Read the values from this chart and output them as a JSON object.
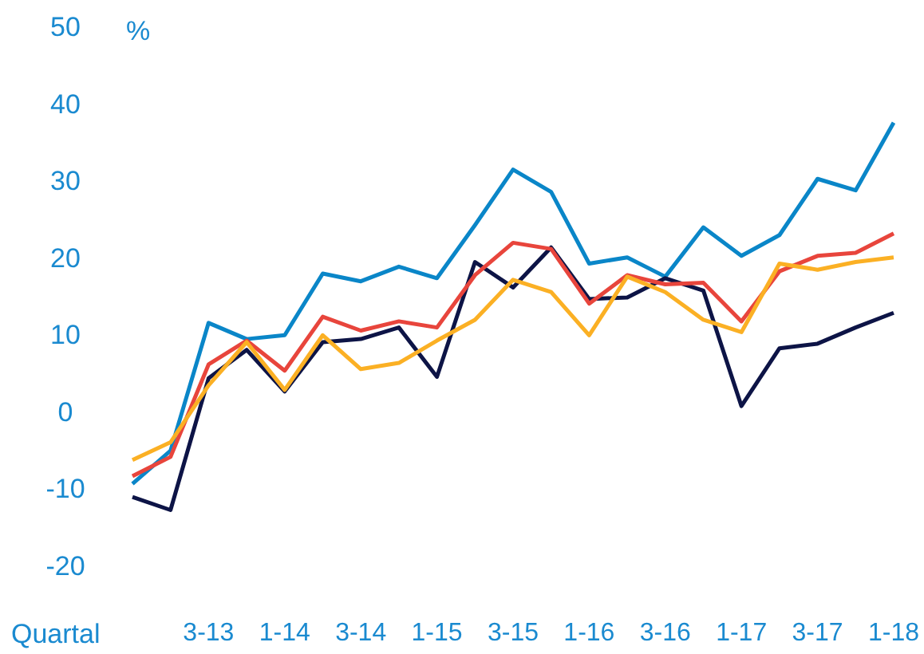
{
  "chart_data": {
    "type": "line",
    "xlabel": "Quartal",
    "ylabel": "%",
    "categories": [
      null,
      null,
      "3-13",
      null,
      "1-14",
      null,
      "3-14",
      null,
      "1-15",
      null,
      "3-15",
      null,
      "1-16",
      null,
      "3-16",
      null,
      "1-17",
      null,
      "3-17",
      null,
      "1-18"
    ],
    "series": [
      {
        "color": "#0a86c8",
        "values": [
          -9.3,
          -5,
          11.6,
          9.5,
          10,
          18,
          17,
          18.9,
          17.4,
          24.3,
          31.5,
          28.6,
          19.3,
          20.1,
          17.6,
          24,
          20.3,
          23,
          30.3,
          28.8,
          37.6
        ]
      },
      {
        "color": "#0d1446",
        "values": [
          -11,
          -12.7,
          4.4,
          8.1,
          2.7,
          9.1,
          9.5,
          11,
          4.6,
          19.5,
          16.2,
          21.4,
          14.7,
          14.9,
          17.4,
          15.8,
          0.8,
          8.3,
          8.9,
          11,
          12.9
        ]
      },
      {
        "color": "#e8453c",
        "values": [
          -8.3,
          -5.8,
          6.2,
          9.3,
          5.4,
          12.4,
          10.6,
          11.8,
          11,
          17.8,
          22,
          21.2,
          14.1,
          17.8,
          16.6,
          16.8,
          11.8,
          18.3,
          20.3,
          20.7,
          23.2
        ]
      },
      {
        "color": "#fbb024",
        "values": [
          -6.2,
          -3.9,
          3.5,
          9.1,
          2.9,
          10,
          5.6,
          6.4,
          9.3,
          12,
          17.2,
          15.6,
          10,
          17.6,
          15.6,
          12,
          10.4,
          19.3,
          18.5,
          19.5,
          20.1
        ]
      }
    ],
    "ylim": [
      -20,
      50
    ],
    "yticks": [
      -20,
      -10,
      0,
      10,
      20,
      30,
      40,
      50
    ],
    "grid": false,
    "marker": "none",
    "line_style": "solid"
  }
}
